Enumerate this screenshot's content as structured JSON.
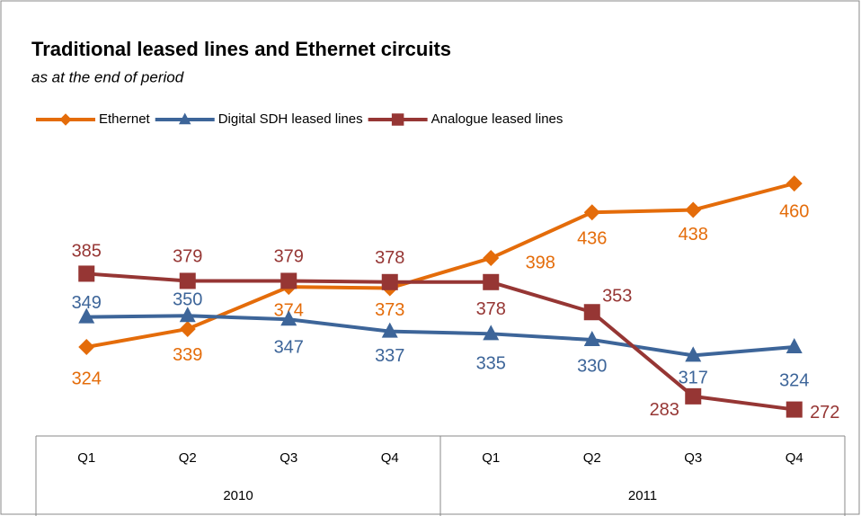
{
  "chart_data": {
    "type": "line",
    "title": "Traditional leased lines and Ethernet circuits",
    "subtitle": "as at the end of period",
    "categories": [
      "Q1",
      "Q2",
      "Q3",
      "Q4",
      "Q1",
      "Q2",
      "Q3",
      "Q4"
    ],
    "category_groups": [
      "2010",
      "2011"
    ],
    "series": [
      {
        "name": "Ethernet",
        "color": "#e46c0a",
        "marker": "diamond",
        "values": [
          324,
          339,
          374,
          373,
          398,
          436,
          438,
          460
        ]
      },
      {
        "name": "Digital SDH leased lines",
        "color": "#3d6599",
        "marker": "triangle",
        "values": [
          349,
          350,
          347,
          337,
          335,
          330,
          317,
          324
        ]
      },
      {
        "name": "Analogue leased lines",
        "color": "#963634",
        "marker": "square",
        "values": [
          385,
          379,
          379,
          378,
          378,
          353,
          283,
          272
        ]
      }
    ],
    "ylim": [
      250,
      490
    ],
    "legend": "top"
  }
}
